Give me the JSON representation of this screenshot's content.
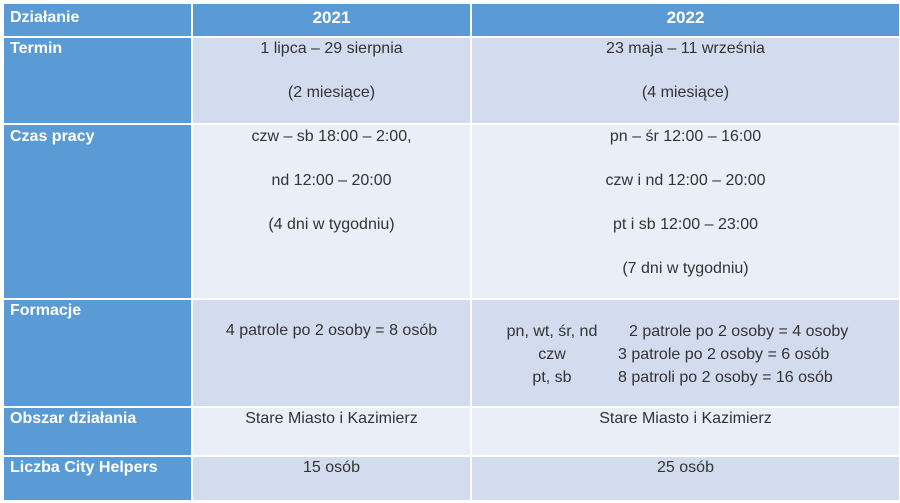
{
  "header": {
    "col0": "Działanie",
    "col1": "2021",
    "col2": "2022"
  },
  "rows": {
    "termin": {
      "label": "Termin",
      "y2021": [
        "1 lipca – 29 sierpnia",
        "(2 miesiące)"
      ],
      "y2022": [
        "23 maja – 11 września",
        "(4 miesiące)"
      ]
    },
    "czas": {
      "label": "Czas pracy",
      "y2021": [
        "czw – sb 18:00 – 2:00,",
        "nd 12:00 – 20:00",
        "(4 dni w tygodniu)"
      ],
      "y2022": [
        "pn – śr 12:00 – 16:00",
        "czw i nd 12:00 – 20:00",
        "pt  i  sb 12:00 – 23:00",
        "(7 dni w tygodniu)"
      ]
    },
    "formacje": {
      "label": "Formacje",
      "y2021": "4 patrole po 2 osoby = 8 osób",
      "y2022": [
        {
          "days": "pn, wt, śr, nd",
          "text": "2 patrole po 2 osoby = 4 osoby"
        },
        {
          "days": "czw",
          "text": "3 patrole po 2 osoby = 6 osób"
        },
        {
          "days": "pt, sb",
          "text": "8 patroli po 2 osoby = 16 osób"
        }
      ]
    },
    "obszar": {
      "label": "Obszar działania",
      "y2021": "Stare Miasto i Kazimierz",
      "y2022": "Stare Miasto i Kazimierz"
    },
    "liczba": {
      "label": "Liczba City Helpers",
      "y2021": "15 osób",
      "y2022": "25 osób"
    }
  },
  "colors": {
    "header": "#5b9bd5",
    "row_dark": "#d2dcee",
    "row_light": "#e9eef7"
  }
}
